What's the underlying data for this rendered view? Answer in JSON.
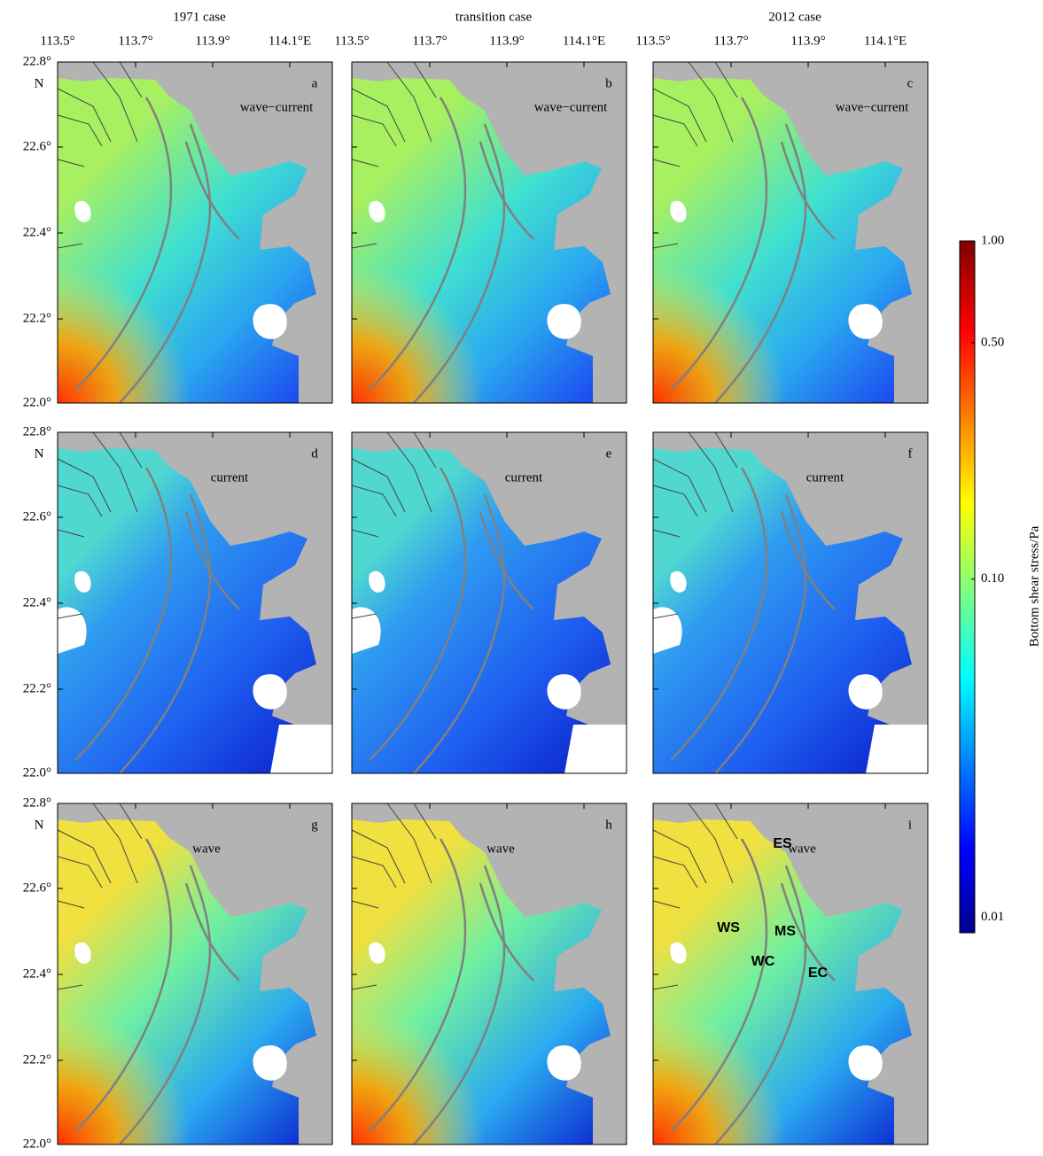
{
  "columns": [
    "1971 case",
    "transition case",
    "2012 case"
  ],
  "rows": [
    "wave−current",
    "current",
    "wave"
  ],
  "panels": [
    "a",
    "b",
    "c",
    "d",
    "e",
    "f",
    "g",
    "h",
    "i"
  ],
  "x_ticks": [
    "113.5°",
    "113.7°",
    "113.9°",
    "114.1°E"
  ],
  "y_ticks": [
    "22.8°",
    "22.6°",
    "22.4°",
    "22.2°",
    "22.0°"
  ],
  "y_unit": "N",
  "colorbar": {
    "label": "Bottom shear stress/Pa",
    "log": true,
    "lim": [
      0.009,
      1
    ],
    "ticks": [
      {
        "value": 1,
        "label": "1.00"
      },
      {
        "value": 0.5,
        "label": "0.50"
      },
      {
        "value": 0.1,
        "label": "0.10"
      },
      {
        "value": 0.01,
        "label": "0.01"
      }
    ]
  },
  "regions": [
    "ES",
    "WS",
    "MS",
    "WC",
    "EC"
  ]
}
